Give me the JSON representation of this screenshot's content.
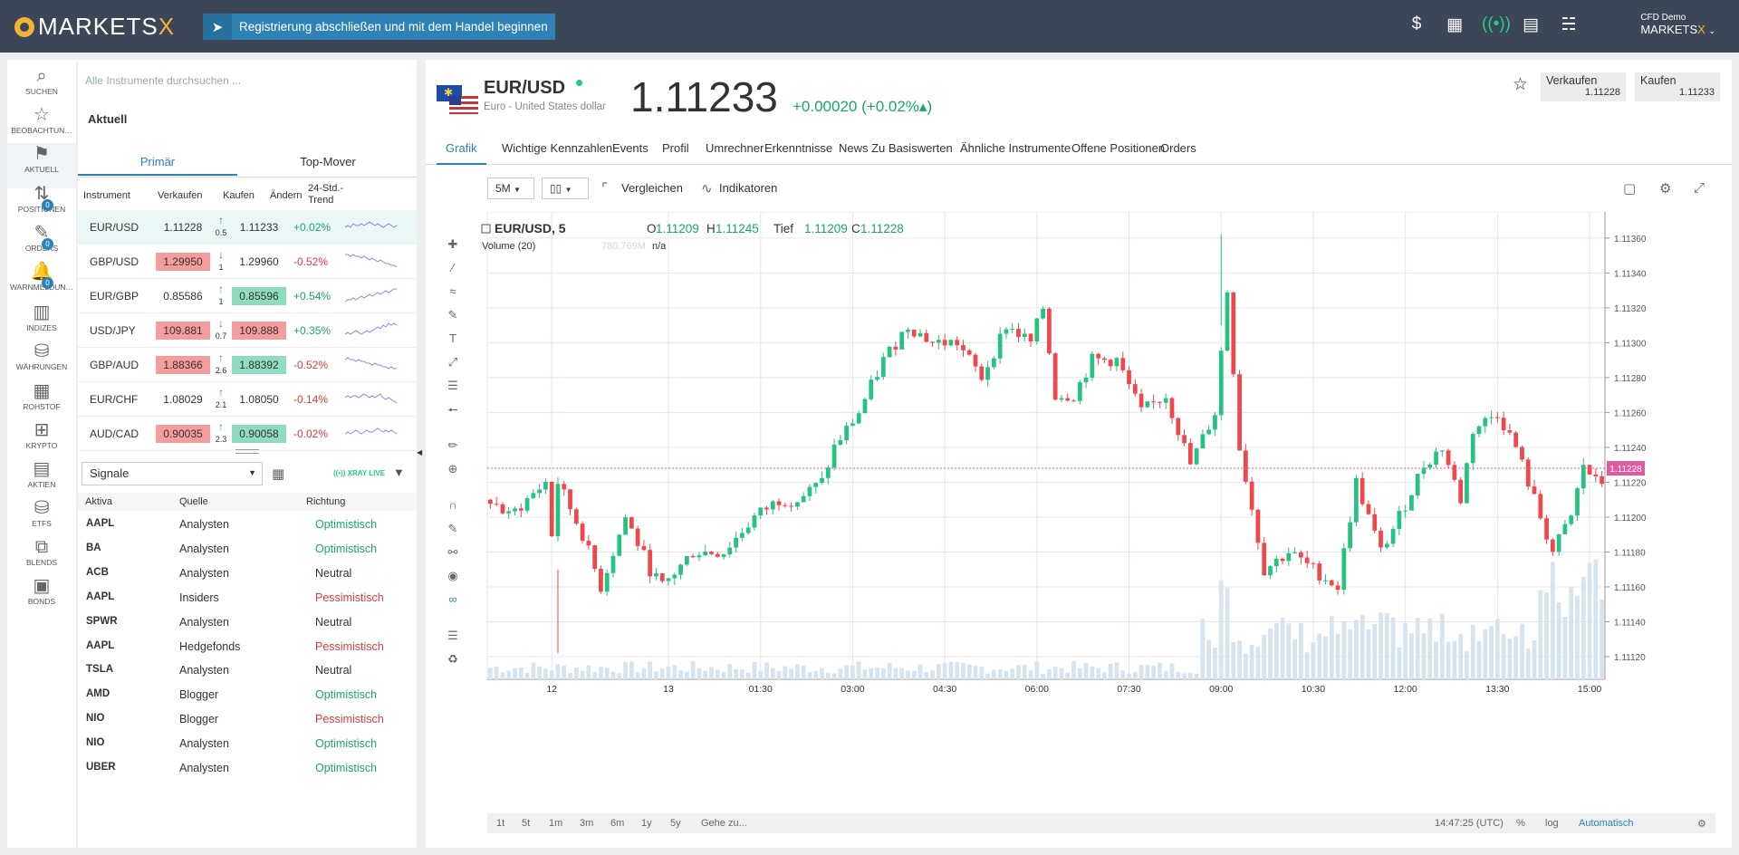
{
  "app": {
    "logo_text": "MARKETS",
    "logo_x": "X",
    "register_banner": "Registrierung abschließen und mit dem Handel beginnen",
    "account_type": "CFD Demo",
    "account_name": "MARKETS",
    "account_x": "X"
  },
  "rail": [
    {
      "label": "SUCHEN",
      "icon": "search-icon",
      "glyph": "⌕"
    },
    {
      "label": "BEOBACHTUN…",
      "icon": "star-icon",
      "glyph": "☆"
    },
    {
      "label": "AKTUELL",
      "icon": "flag-icon",
      "glyph": "⚑"
    },
    {
      "label": "POSITIONEN",
      "icon": "positions-icon",
      "glyph": "⇅",
      "badge": "0"
    },
    {
      "label": "ORDERS",
      "icon": "orders-icon",
      "glyph": "✎",
      "badge": "0"
    },
    {
      "label": "WARNMELDUN…",
      "icon": "bell-icon",
      "glyph": "🔔",
      "badge": "0"
    },
    {
      "label": "INDIZES",
      "icon": "indices-icon",
      "glyph": "▥"
    },
    {
      "label": "WÄHRUNGEN",
      "icon": "currencies-icon",
      "glyph": "⛁"
    },
    {
      "label": "ROHSTOF",
      "icon": "commodities-icon",
      "glyph": "▦"
    },
    {
      "label": "KRYPTO",
      "icon": "crypto-icon",
      "glyph": "⊞"
    },
    {
      "label": "AKTIEN",
      "icon": "stocks-icon",
      "glyph": "▤"
    },
    {
      "label": "ETFS",
      "icon": "etfs-icon",
      "glyph": "⛁"
    },
    {
      "label": "BLENDS",
      "icon": "blends-icon",
      "glyph": "⧉"
    },
    {
      "label": "BONDS",
      "icon": "bonds-icon",
      "glyph": "▣"
    }
  ],
  "panel": {
    "search_placeholder": "Alle Instrumente durchsuchen ...",
    "section_title": "Aktuell",
    "tabs": [
      "Primär",
      "Top-Mover"
    ],
    "columns": [
      "Instrument",
      "Verkaufen",
      "Kaufen",
      "Ändern",
      "24-Std.-Trend"
    ],
    "instruments": [
      {
        "sym": "EUR/USD",
        "sell": "1.11228",
        "buy": "1.11233",
        "spread": "0.5",
        "dir": "up",
        "change": "+0.02%",
        "sell_hl": "",
        "buy_hl": "",
        "trend": [
          5,
          6,
          5,
          7,
          6,
          6,
          7,
          6,
          7,
          8,
          7,
          6,
          7,
          6,
          5,
          6,
          7,
          6,
          5,
          6
        ]
      },
      {
        "sym": "GBP/USD",
        "sell": "1.29950",
        "buy": "1.29960",
        "spread": "1",
        "dir": "down",
        "change": "-0.52%",
        "sell_hl": "neg",
        "buy_hl": "",
        "trend": [
          9,
          9,
          8,
          9,
          8,
          8,
          7,
          8,
          7,
          6,
          7,
          6,
          5,
          6,
          5,
          4,
          4,
          3,
          3,
          2
        ]
      },
      {
        "sym": "EUR/GBP",
        "sell": "0.85586",
        "buy": "0.85596",
        "spread": "1",
        "dir": "up",
        "change": "+0.54%",
        "sell_hl": "",
        "buy_hl": "pos",
        "trend": [
          2,
          3,
          3,
          4,
          3,
          4,
          5,
          4,
          5,
          6,
          5,
          6,
          7,
          6,
          7,
          8,
          7,
          8,
          9,
          9
        ]
      },
      {
        "sym": "USD/JPY",
        "sell": "109.881",
        "buy": "109.888",
        "spread": "0.7",
        "dir": "down",
        "change": "+0.35%",
        "sell_hl": "neg",
        "buy_hl": "neg",
        "trend": [
          3,
          4,
          3,
          4,
          5,
          4,
          3,
          4,
          5,
          4,
          5,
          6,
          7,
          6,
          8,
          7,
          9,
          8,
          9,
          8
        ]
      },
      {
        "sym": "GBP/AUD",
        "sell": "1.88366",
        "buy": "1.88392",
        "spread": "2.6",
        "dir": "up",
        "change": "-0.52%",
        "sell_hl": "neg",
        "buy_hl": "pos",
        "trend": [
          8,
          9,
          8,
          8,
          7,
          8,
          7,
          7,
          6,
          6,
          5,
          6,
          5,
          5,
          4,
          4,
          3,
          4,
          3,
          3
        ]
      },
      {
        "sym": "EUR/CHF",
        "sell": "1.08029",
        "buy": "1.08050",
        "spread": "2.1",
        "dir": "up",
        "change": "-0.14%",
        "sell_hl": "",
        "buy_hl": "",
        "trend": [
          6,
          7,
          6,
          7,
          7,
          6,
          7,
          8,
          7,
          6,
          7,
          6,
          7,
          8,
          6,
          5,
          6,
          5,
          4,
          3
        ]
      },
      {
        "sym": "AUD/CAD",
        "sell": "0.90035",
        "buy": "0.90058",
        "spread": "2.3",
        "dir": "up",
        "change": "-0.02%",
        "sell_hl": "neg",
        "buy_hl": "pos",
        "trend": [
          5,
          6,
          5,
          6,
          7,
          6,
          5,
          6,
          7,
          6,
          6,
          7,
          8,
          7,
          6,
          7,
          6,
          7,
          6,
          5
        ]
      }
    ],
    "signals_select": "Signale",
    "xray_label": "XRAY LIVE",
    "signal_columns": [
      "Aktiva",
      "Quelle",
      "Richtung"
    ],
    "signals": [
      {
        "asset": "AAPL",
        "source": "Analysten",
        "direction": "Optimistisch",
        "kind": "opt"
      },
      {
        "asset": "BA",
        "source": "Analysten",
        "direction": "Optimistisch",
        "kind": "opt"
      },
      {
        "asset": "ACB",
        "source": "Analysten",
        "direction": "Neutral",
        "kind": "neu"
      },
      {
        "asset": "AAPL",
        "source": "Insiders",
        "direction": "Pessimistisch",
        "kind": "pes"
      },
      {
        "asset": "SPWR",
        "source": "Analysten",
        "direction": "Neutral",
        "kind": "neu"
      },
      {
        "asset": "AAPL",
        "source": "Hedgefonds",
        "direction": "Pessimistisch",
        "kind": "pes"
      },
      {
        "asset": "TSLA",
        "source": "Analysten",
        "direction": "Neutral",
        "kind": "neu"
      },
      {
        "asset": "AMD",
        "source": "Blogger",
        "direction": "Optimistisch",
        "kind": "opt"
      },
      {
        "asset": "NIO",
        "source": "Blogger",
        "direction": "Pessimistisch",
        "kind": "pes"
      },
      {
        "asset": "NIO",
        "source": "Analysten",
        "direction": "Optimistisch",
        "kind": "opt"
      },
      {
        "asset": "UBER",
        "source": "Analysten",
        "direction": "Optimistisch",
        "kind": "opt"
      }
    ]
  },
  "instrument": {
    "pair": "EUR/USD",
    "name": "Euro - United States dollar",
    "price": "1.11233",
    "change_abs": "+0.00020",
    "change_pct": "(+0.02%▴)",
    "sell_label": "Verkaufen",
    "sell_value": "1.11228",
    "buy_label": "Kaufen",
    "buy_value": "1.11233"
  },
  "nav": [
    "Grafik",
    "Wichtige Kennzahlen",
    "Events",
    "Profil",
    "Umrechner",
    "Erkenntnisse",
    "News Zu Basiswerten",
    "Ähnliche Instrumente",
    "Offene Positionen",
    "Orders"
  ],
  "toolbar": {
    "interval": "5M",
    "compare": "Vergleichen",
    "indicators": "Indikatoren"
  },
  "footer": {
    "ranges": [
      "1t",
      "5t",
      "1m",
      "3m",
      "6m",
      "1y",
      "5y"
    ],
    "goto": "Gehe zu...",
    "time": "14:47:25 (UTC)",
    "percent": "%",
    "log": "log",
    "auto": "Automatisch"
  },
  "chart_data": {
    "type": "candlestick",
    "title": "EUR/USD, 5",
    "ohlc_labels": {
      "o_label": "O",
      "o": "1.11209",
      "h_label": "H",
      "h": "1.11245",
      "l_label": "Tief",
      "l": "1.11209",
      "c_label": "C",
      "c": "1.11228"
    },
    "volume_label": "Volume (20)",
    "volume_value": "780.769M",
    "volume_na": "n/a",
    "current_price": 1.11228,
    "current_price_label": "1.11228",
    "ylim": [
      1.11107,
      1.11375
    ],
    "y_ticks": [
      1.1112,
      1.1114,
      1.1116,
      1.1118,
      1.112,
      1.1122,
      1.1124,
      1.1126,
      1.1128,
      1.113,
      1.1132,
      1.1134,
      1.1136
    ],
    "y_tick_labels": [
      "1.11120",
      "1.11140",
      "1.11160",
      "1.11180",
      "1.11200",
      "1.11220",
      "1.11240",
      "1.11260",
      "1.11280",
      "1.11300",
      "1.11320",
      "1.11340",
      "1.11360"
    ],
    "x_tick_labels": [
      "12",
      "13",
      "01:30",
      "03:00",
      "04:30",
      "06:00",
      "07:30",
      "09:00",
      "10:30",
      "12:00",
      "13:30",
      "15:00"
    ],
    "x_tick_index": [
      10,
      29,
      44,
      59,
      74,
      89,
      104,
      119,
      134,
      149,
      164,
      179
    ],
    "close_path": [
      [
        0,
        1.1121
      ],
      [
        3,
        1.112
      ],
      [
        6,
        1.1121
      ],
      [
        9,
        1.1122
      ],
      [
        10,
        1.1119
      ],
      [
        11,
        1.1122
      ],
      [
        15,
        1.1119
      ],
      [
        18,
        1.1116
      ],
      [
        22,
        1.112
      ],
      [
        26,
        1.1117
      ],
      [
        28,
        1.1116
      ],
      [
        33,
        1.1118
      ],
      [
        38,
        1.1118
      ],
      [
        43,
        1.112
      ],
      [
        47,
        1.1121
      ],
      [
        50,
        1.1121
      ],
      [
        54,
        1.1122
      ],
      [
        56,
        1.1124
      ],
      [
        60,
        1.1126
      ],
      [
        64,
        1.1129
      ],
      [
        68,
        1.1131
      ],
      [
        72,
        1.113
      ],
      [
        76,
        1.113
      ],
      [
        80,
        1.1128
      ],
      [
        84,
        1.1131
      ],
      [
        88,
        1.113
      ],
      [
        90,
        1.1132
      ],
      [
        92,
        1.1127
      ],
      [
        95,
        1.1127
      ],
      [
        98,
        1.1129
      ],
      [
        102,
        1.1129
      ],
      [
        106,
        1.1126
      ],
      [
        110,
        1.1127
      ],
      [
        114,
        1.1123
      ],
      [
        118,
        1.1126
      ],
      [
        120,
        1.1133
      ],
      [
        122,
        1.1124
      ],
      [
        126,
        1.1117
      ],
      [
        130,
        1.1118
      ],
      [
        134,
        1.1117
      ],
      [
        138,
        1.1116
      ],
      [
        141,
        1.1122
      ],
      [
        145,
        1.1118
      ],
      [
        148,
        1.112
      ],
      [
        152,
        1.1123
      ],
      [
        155,
        1.1124
      ],
      [
        158,
        1.1121
      ],
      [
        160,
        1.1125
      ],
      [
        164,
        1.1126
      ],
      [
        167,
        1.1124
      ],
      [
        170,
        1.1121
      ],
      [
        173,
        1.1118
      ],
      [
        176,
        1.112
      ],
      [
        178,
        1.1123
      ],
      [
        180,
        1.1122
      ]
    ],
    "candle_count": 182
  }
}
